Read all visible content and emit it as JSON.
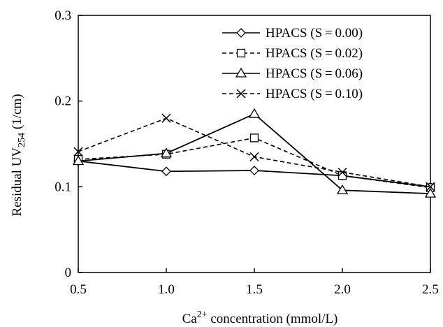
{
  "chart_data": {
    "type": "line",
    "title": "",
    "xlabel": {
      "base": "Ca",
      "sup": "2+",
      "rest": " concentration (mmol/L)"
    },
    "ylabel": {
      "base": "Residual UV",
      "sub": "254",
      "rest": " (1/cm)"
    },
    "x": [
      0.5,
      1.0,
      1.5,
      2.0,
      2.5
    ],
    "x_tick_labels": [
      "0.5",
      "1.0",
      "1.5",
      "2.0",
      "2.5"
    ],
    "xlim": [
      0.5,
      2.5
    ],
    "ylim": [
      0,
      0.3
    ],
    "y_ticks": [
      0,
      0.1,
      0.2,
      0.3
    ],
    "y_tick_labels": [
      "0",
      "0.1",
      "0.2",
      "0.3"
    ],
    "grid": false,
    "legend_position": "top-right",
    "series": [
      {
        "name": "HPACS (S = 0.00)",
        "marker": "diamond",
        "line": "solid",
        "values": [
          0.13,
          0.118,
          0.119,
          0.113,
          0.1
        ]
      },
      {
        "name": "HPACS (S = 0.02)",
        "marker": "square",
        "line": "dashed",
        "values": [
          0.132,
          0.138,
          0.157,
          0.113,
          0.099
        ]
      },
      {
        "name": "HPACS (S = 0.06)",
        "marker": "triangle",
        "line": "solid",
        "values": [
          0.13,
          0.139,
          0.185,
          0.096,
          0.092
        ]
      },
      {
        "name": "HPACS (S = 0.10)",
        "marker": "x",
        "line": "dashed",
        "values": [
          0.141,
          0.18,
          0.135,
          0.117,
          0.1
        ]
      }
    ],
    "colors": {
      "line": "#000000",
      "background": "#ffffff"
    }
  }
}
